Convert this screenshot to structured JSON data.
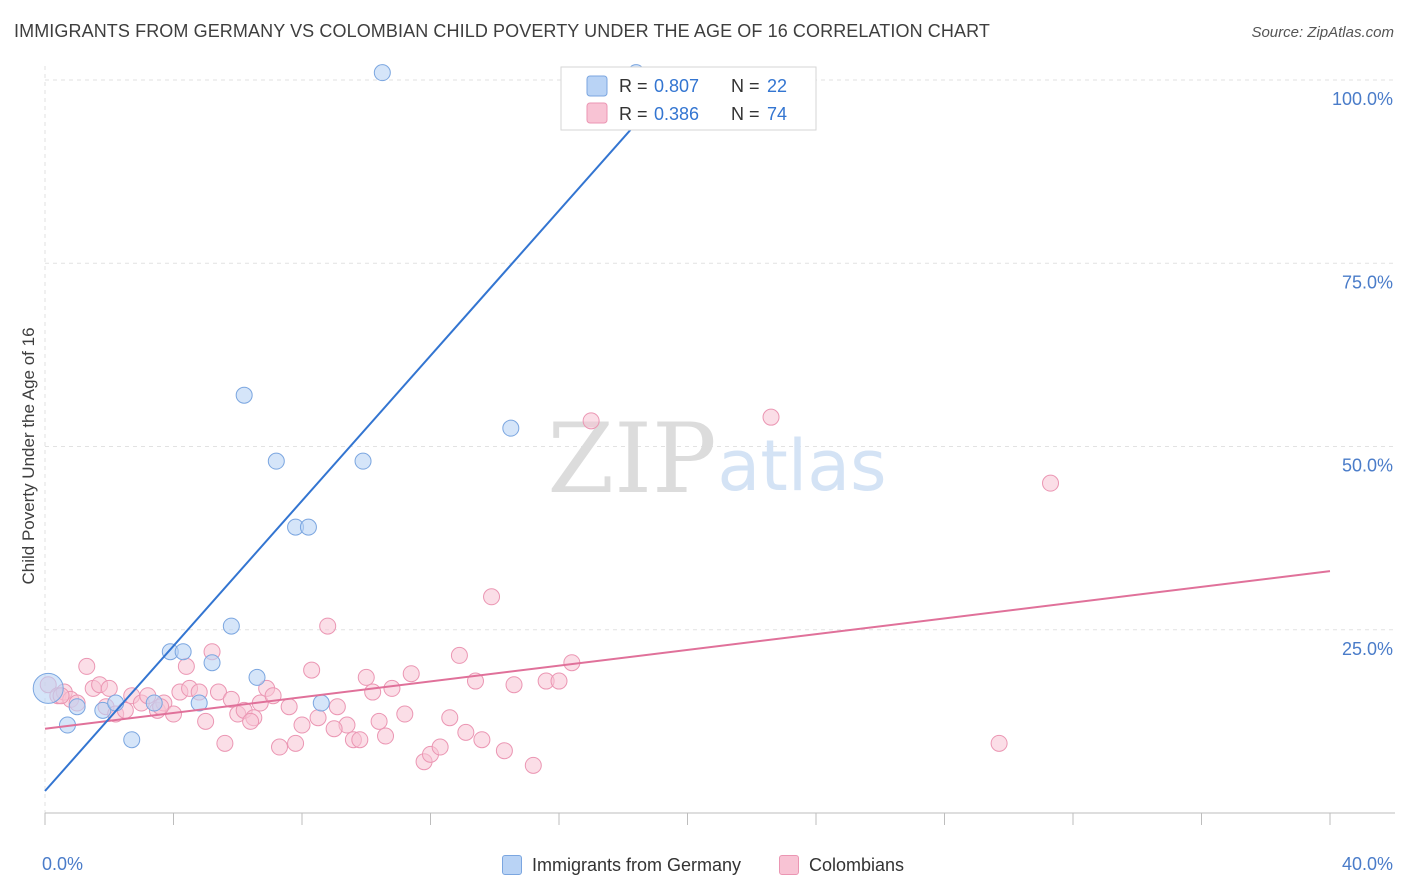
{
  "header": {
    "title": "IMMIGRANTS FROM GERMANY VS COLOMBIAN CHILD POVERTY UNDER THE AGE OF 16 CORRELATION CHART",
    "source": "Source: ZipAtlas.com"
  },
  "watermark": {
    "zip": "ZIP",
    "atlas": "atlas"
  },
  "colors": {
    "blue_fill": "#b9d3f5",
    "blue_stroke": "#7ba6e0",
    "blue_line": "#3375d1",
    "pink_fill": "#f8c3d4",
    "pink_stroke": "#eb96b3",
    "pink_line": "#e0719a",
    "axis_text": "#4a7cc9"
  },
  "chart_data": {
    "type": "scatter",
    "title": "IMMIGRANTS FROM GERMANY VS COLOMBIAN CHILD POVERTY UNDER THE AGE OF 16 CORRELATION CHART",
    "xlabel": "",
    "ylabel": "Child Poverty Under the Age of 16",
    "xlim": [
      0,
      40
    ],
    "ylim": [
      0,
      100
    ],
    "x_tick_labels": [
      "0.0%",
      "40.0%"
    ],
    "y_ticks": [
      25,
      50,
      75,
      100
    ],
    "y_tick_labels": [
      "25.0%",
      "50.0%",
      "75.0%",
      "100.0%"
    ],
    "grid": true,
    "legend_position": "top-center",
    "series": [
      {
        "name": "Immigrants from Germany",
        "r_label": "R =",
        "r_value": "0.807",
        "n_label": "N =",
        "n_value": "22",
        "trend": {
          "x": [
            0,
            19.6
          ],
          "y": [
            3,
            100
          ]
        },
        "points": [
          [
            0.1,
            17.0
          ],
          [
            0.7,
            12.0
          ],
          [
            1.0,
            14.5
          ],
          [
            1.8,
            14.0
          ],
          [
            2.2,
            15.0
          ],
          [
            2.7,
            10.0
          ],
          [
            3.4,
            15.0
          ],
          [
            3.9,
            22.0
          ],
          [
            4.3,
            22.0
          ],
          [
            4.8,
            15.0
          ],
          [
            5.2,
            20.5
          ],
          [
            5.8,
            25.5
          ],
          [
            6.2,
            57.0
          ],
          [
            6.6,
            18.5
          ],
          [
            7.2,
            48.0
          ],
          [
            7.8,
            39.0
          ],
          [
            8.2,
            39.0
          ],
          [
            8.6,
            15.0
          ],
          [
            9.9,
            48.0
          ],
          [
            10.5,
            101.0
          ],
          [
            14.5,
            52.5
          ],
          [
            18.4,
            101.0
          ]
        ]
      },
      {
        "name": "Colombians",
        "r_label": "R =",
        "r_value": "0.386",
        "n_label": "N =",
        "n_value": "74",
        "trend": {
          "x": [
            0,
            40
          ],
          "y": [
            11.5,
            33
          ]
        },
        "points": [
          [
            0.1,
            17.5
          ],
          [
            0.4,
            16.0
          ],
          [
            0.6,
            16.5
          ],
          [
            0.8,
            15.5
          ],
          [
            1.0,
            15.0
          ],
          [
            1.3,
            20.0
          ],
          [
            1.5,
            17.0
          ],
          [
            1.7,
            17.5
          ],
          [
            1.9,
            14.5
          ],
          [
            2.2,
            13.5
          ],
          [
            2.5,
            14.0
          ],
          [
            2.7,
            16.0
          ],
          [
            3.0,
            15.0
          ],
          [
            3.2,
            16.0
          ],
          [
            3.5,
            14.0
          ],
          [
            3.7,
            15.0
          ],
          [
            4.0,
            13.5
          ],
          [
            4.2,
            16.5
          ],
          [
            4.4,
            20.0
          ],
          [
            4.5,
            17.0
          ],
          [
            4.8,
            16.5
          ],
          [
            5.0,
            12.5
          ],
          [
            5.2,
            22.0
          ],
          [
            5.4,
            16.5
          ],
          [
            5.6,
            9.5
          ],
          [
            5.8,
            15.5
          ],
          [
            6.0,
            13.5
          ],
          [
            6.2,
            14.0
          ],
          [
            6.5,
            13.0
          ],
          [
            6.7,
            15.0
          ],
          [
            6.9,
            17.0
          ],
          [
            7.1,
            16.0
          ],
          [
            7.3,
            9.0
          ],
          [
            7.6,
            14.5
          ],
          [
            7.8,
            9.5
          ],
          [
            8.0,
            12.0
          ],
          [
            8.3,
            19.5
          ],
          [
            8.5,
            13.0
          ],
          [
            8.8,
            25.5
          ],
          [
            9.1,
            14.5
          ],
          [
            9.4,
            12.0
          ],
          [
            9.6,
            10.0
          ],
          [
            9.8,
            10.0
          ],
          [
            10.0,
            18.5
          ],
          [
            10.2,
            16.5
          ],
          [
            10.4,
            12.5
          ],
          [
            10.6,
            10.5
          ],
          [
            10.8,
            17.0
          ],
          [
            11.2,
            13.5
          ],
          [
            11.4,
            19.0
          ],
          [
            11.8,
            7.0
          ],
          [
            12.0,
            8.0
          ],
          [
            12.3,
            9.0
          ],
          [
            12.6,
            13.0
          ],
          [
            12.9,
            21.5
          ],
          [
            13.1,
            11.0
          ],
          [
            13.4,
            18.0
          ],
          [
            13.6,
            10.0
          ],
          [
            13.9,
            29.5
          ],
          [
            14.3,
            8.5
          ],
          [
            14.6,
            17.5
          ],
          [
            15.2,
            6.5
          ],
          [
            15.6,
            18.0
          ],
          [
            16.0,
            18.0
          ],
          [
            16.4,
            20.5
          ],
          [
            17.0,
            53.5
          ],
          [
            22.6,
            54.0
          ],
          [
            29.7,
            9.5
          ],
          [
            31.3,
            45.0
          ],
          [
            0.5,
            16.0
          ],
          [
            2.0,
            17.0
          ],
          [
            3.6,
            14.5
          ],
          [
            6.4,
            12.5
          ],
          [
            9.0,
            11.5
          ]
        ]
      }
    ]
  }
}
